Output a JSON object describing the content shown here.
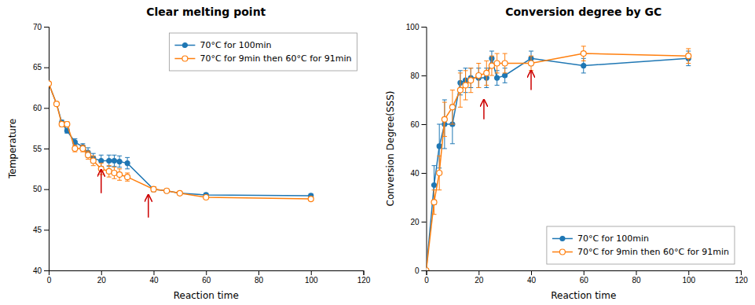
{
  "chart_data": [
    {
      "type": "line",
      "title": "Clear melting point",
      "x_label": "Reaction time",
      "y_label": "Temperature",
      "x": [
        0,
        3,
        5,
        7,
        10,
        13,
        15,
        17,
        20,
        23,
        25,
        27,
        30,
        40,
        45,
        50,
        60,
        100
      ],
      "series": [
        {
          "name": "70°C for 100min",
          "marker": "circle",
          "values": [
            63.0,
            60.5,
            58.2,
            57.2,
            55.8,
            55.2,
            54.5,
            53.8,
            53.5,
            53.5,
            53.5,
            53.4,
            53.2,
            50.0,
            49.8,
            49.5,
            49.3,
            49.2
          ],
          "errors": [
            0.2,
            0.2,
            0.3,
            0.3,
            0.4,
            0.4,
            0.6,
            0.6,
            0.7,
            0.7,
            0.7,
            0.7,
            0.7,
            0.3,
            0.2,
            0.2,
            0.2,
            0.2
          ]
        },
        {
          "name": "70°C for 9min then 60°C for 91min",
          "marker": "open-circle",
          "values": [
            63.0,
            60.5,
            58.0,
            58.0,
            55.0,
            55.0,
            54.2,
            53.5,
            52.5,
            52.2,
            52.0,
            51.8,
            51.5,
            50.0,
            49.8,
            49.5,
            49.0,
            48.8
          ],
          "errors": [
            0.2,
            0.2,
            0.3,
            0.3,
            0.4,
            0.4,
            0.5,
            0.6,
            0.7,
            0.7,
            0.7,
            0.7,
            0.5,
            0.3,
            0.2,
            0.2,
            0.2,
            0.2
          ]
        }
      ],
      "xlim": [
        0,
        120
      ],
      "xticks": [
        0,
        20,
        40,
        60,
        80,
        100,
        120
      ],
      "ylim": [
        40,
        70
      ],
      "yticks": [
        40,
        45,
        50,
        55,
        60,
        65,
        70
      ],
      "annotations": [
        {
          "type": "arrow",
          "x": 20,
          "y": 52.4,
          "y_tail": 49.5,
          "color": "#cc0000"
        },
        {
          "type": "arrow",
          "x": 38,
          "y": 49.3,
          "y_tail": 46.5,
          "color": "#cc0000"
        }
      ],
      "legend": "upper right",
      "grid": false
    },
    {
      "type": "line",
      "title": "Conversion degree by GC",
      "x_label": "Reaction time",
      "y_label": "Conversion Degree(SSS)",
      "x": [
        0,
        3,
        5,
        7,
        10,
        13,
        15,
        17,
        20,
        23,
        25,
        27,
        30,
        40,
        60,
        100
      ],
      "series": [
        {
          "name": "70°C for 100min",
          "marker": "circle",
          "values": [
            0,
            35,
            51,
            60,
            60,
            77,
            78,
            79,
            79,
            79,
            87,
            79,
            80,
            87,
            84,
            87
          ],
          "errors": [
            0,
            8,
            9,
            10,
            8,
            5,
            5,
            4,
            4,
            4,
            3,
            3,
            3,
            3,
            3,
            3
          ]
        },
        {
          "name": "70°C for 9min then 60°C for 91min",
          "marker": "open-circle",
          "values": [
            0,
            28,
            40,
            62,
            67,
            74,
            76,
            78,
            80,
            81,
            84,
            85,
            85,
            85,
            89,
            88
          ],
          "errors": [
            0,
            5,
            7,
            7,
            7,
            7,
            6,
            5,
            5,
            5,
            4,
            4,
            4,
            3,
            3,
            3
          ]
        }
      ],
      "xlim": [
        0,
        120
      ],
      "xticks": [
        0,
        20,
        40,
        60,
        80,
        100,
        120
      ],
      "ylim": [
        0,
        100
      ],
      "yticks": [
        0,
        20,
        40,
        60,
        80,
        100
      ],
      "annotations": [
        {
          "type": "arrow",
          "x": 22,
          "y": 70,
          "y_tail": 62,
          "color": "#cc0000"
        },
        {
          "type": "arrow",
          "x": 40,
          "y": 82,
          "y_tail": 74,
          "color": "#cc0000"
        }
      ],
      "legend": "lower right",
      "grid": false
    }
  ]
}
